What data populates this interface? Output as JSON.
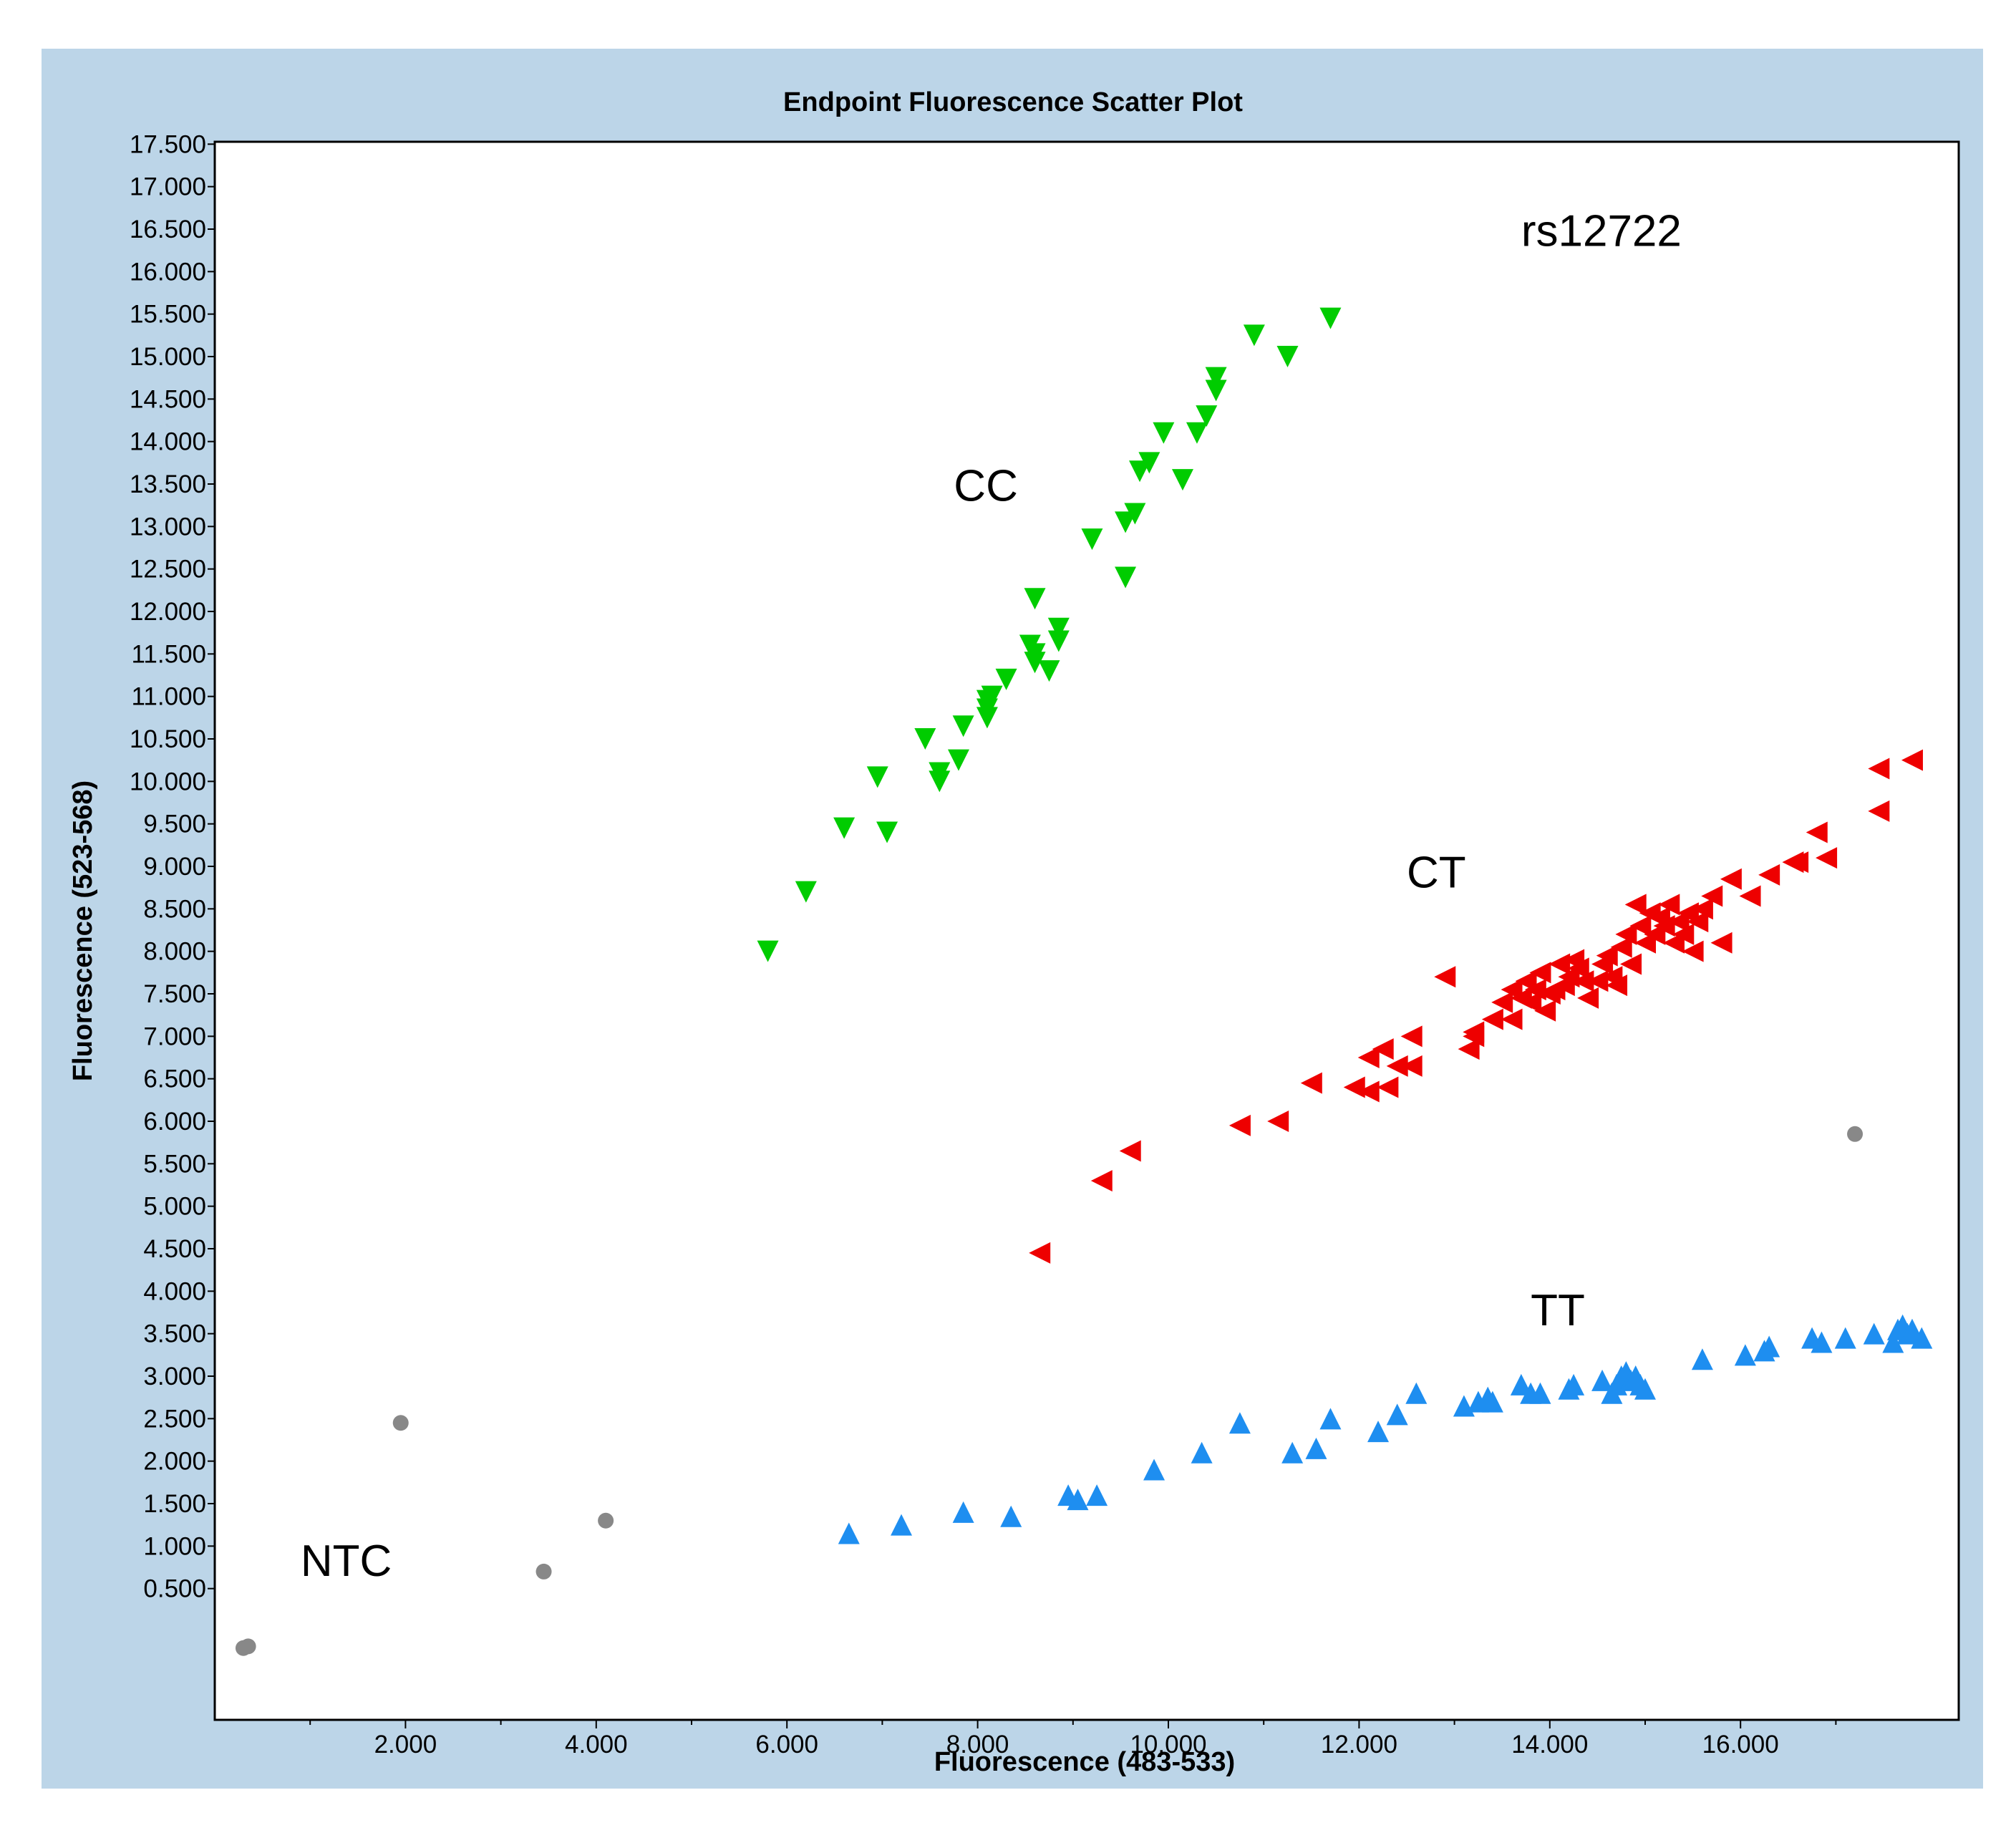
{
  "chart_data": {
    "type": "scatter",
    "title": "Endpoint Fluorescence Scatter Plot",
    "xlabel": "Fluorescence (483-533)",
    "ylabel": "Fluorescence (523-568)",
    "xlim": [
      0,
      18000
    ],
    "ylim": [
      -500,
      18000
    ],
    "xticks": [
      "2.000",
      "4.000",
      "6.000",
      "8.000",
      "10.000",
      "12.000",
      "14.000",
      "16.000"
    ],
    "xtick_values": [
      2000,
      4000,
      6000,
      8000,
      10000,
      12000,
      14000,
      16000
    ],
    "yticks": [
      "0.500",
      "1.000",
      "1.500",
      "2.000",
      "2.500",
      "3.000",
      "3.500",
      "4.000",
      "4.500",
      "5.000",
      "5.500",
      "6.000",
      "6.500",
      "7.000",
      "7.500",
      "8.000",
      "8.500",
      "9.000",
      "9.500",
      "10.000",
      "10.500",
      "11.000",
      "11.500",
      "12.000",
      "12.500",
      "13.000",
      "13.500",
      "14.000",
      "14.500",
      "15.000",
      "15.500",
      "16.000",
      "16.500",
      "17.000",
      "17.500"
    ],
    "ytick_values": [
      500,
      1000,
      1500,
      2000,
      2500,
      3000,
      3500,
      4000,
      4500,
      5000,
      5500,
      6000,
      6500,
      7000,
      7500,
      8000,
      8500,
      9000,
      9500,
      10000,
      10500,
      11000,
      11500,
      12000,
      12500,
      13000,
      13500,
      14000,
      14500,
      15000,
      15500,
      16000,
      16500,
      17000,
      17500
    ],
    "grid": false,
    "annotations": [
      {
        "text": "rs12722",
        "x": 13700,
        "y": 16300
      },
      {
        "text": "CC",
        "x": 7750,
        "y": 13300
      },
      {
        "text": "CT",
        "x": 12500,
        "y": 8750
      },
      {
        "text": "TT",
        "x": 13800,
        "y": 3600
      },
      {
        "text": "NTC",
        "x": 900,
        "y": 650
      }
    ],
    "series": [
      {
        "color": "#00cc00",
        "marker": "triangle-down",
        "points": [
          [
            5800,
            8000
          ],
          [
            6200,
            8700
          ],
          [
            6600,
            9450
          ],
          [
            6950,
            10050
          ],
          [
            7050,
            9400
          ],
          [
            7450,
            10500
          ],
          [
            7600,
            10000
          ],
          [
            7600,
            10100
          ],
          [
            7800,
            10250
          ],
          [
            7850,
            10650
          ],
          [
            8100,
            10750
          ],
          [
            8100,
            10850
          ],
          [
            8150,
            11000
          ],
          [
            8100,
            10950
          ],
          [
            8300,
            11200
          ],
          [
            8550,
            11600
          ],
          [
            8600,
            11500
          ],
          [
            8600,
            12150
          ],
          [
            8600,
            11400
          ],
          [
            8750,
            11300
          ],
          [
            8850,
            11650
          ],
          [
            8850,
            11800
          ],
          [
            9200,
            12850
          ],
          [
            9550,
            13050
          ],
          [
            9550,
            12400
          ],
          [
            9650,
            13150
          ],
          [
            9700,
            13650
          ],
          [
            9800,
            13750
          ],
          [
            9950,
            14100
          ],
          [
            10150,
            13550
          ],
          [
            10300,
            14100
          ],
          [
            10400,
            14300
          ],
          [
            10500,
            14600
          ],
          [
            10500,
            14750
          ],
          [
            10900,
            15250
          ],
          [
            11250,
            15000
          ],
          [
            11700,
            15450
          ]
        ]
      },
      {
        "color": "#ee0000",
        "marker": "triangle-left",
        "points": [
          [
            8650,
            4450
          ],
          [
            9300,
            5300
          ],
          [
            9600,
            5650
          ],
          [
            10750,
            5950
          ],
          [
            11150,
            6000
          ],
          [
            11500,
            6450
          ],
          [
            11950,
            6400
          ],
          [
            12100,
            6350
          ],
          [
            12300,
            6400
          ],
          [
            12100,
            6750
          ],
          [
            12250,
            6850
          ],
          [
            12400,
            6650
          ],
          [
            12550,
            6650
          ],
          [
            12550,
            7000
          ],
          [
            12900,
            7700
          ],
          [
            13150,
            6850
          ],
          [
            13200,
            7000
          ],
          [
            13200,
            7050
          ],
          [
            13400,
            7200
          ],
          [
            13500,
            7400
          ],
          [
            13600,
            7200
          ],
          [
            13600,
            7550
          ],
          [
            13700,
            7450
          ],
          [
            13750,
            7650
          ],
          [
            13800,
            7400
          ],
          [
            13850,
            7550
          ],
          [
            13900,
            7750
          ],
          [
            13950,
            7300
          ],
          [
            14000,
            7500
          ],
          [
            14050,
            7550
          ],
          [
            14100,
            7850
          ],
          [
            14150,
            7600
          ],
          [
            14200,
            7700
          ],
          [
            14250,
            7900
          ],
          [
            14300,
            7800
          ],
          [
            14350,
            7650
          ],
          [
            14400,
            7450
          ],
          [
            14500,
            7650
          ],
          [
            14550,
            7850
          ],
          [
            14600,
            7950
          ],
          [
            14650,
            7700
          ],
          [
            14700,
            7600
          ],
          [
            14750,
            8050
          ],
          [
            14800,
            8200
          ],
          [
            14850,
            7850
          ],
          [
            14900,
            8550
          ],
          [
            14950,
            8300
          ],
          [
            15000,
            8100
          ],
          [
            15050,
            8450
          ],
          [
            15100,
            8200
          ],
          [
            15150,
            8400
          ],
          [
            15200,
            8300
          ],
          [
            15250,
            8550
          ],
          [
            15300,
            8100
          ],
          [
            15350,
            8350
          ],
          [
            15400,
            8200
          ],
          [
            15450,
            8450
          ],
          [
            15500,
            8000
          ],
          [
            15550,
            8350
          ],
          [
            15600,
            8500
          ],
          [
            15700,
            8650
          ],
          [
            15800,
            8100
          ],
          [
            15900,
            8850
          ],
          [
            16100,
            8650
          ],
          [
            16300,
            8900
          ],
          [
            16550,
            9050
          ],
          [
            16600,
            9050
          ],
          [
            16800,
            9400
          ],
          [
            16900,
            9100
          ],
          [
            17450,
            10150
          ],
          [
            17450,
            9650
          ],
          [
            17800,
            10250
          ]
        ]
      },
      {
        "color": "#1e8ef0",
        "marker": "triangle-up",
        "points": [
          [
            6650,
            1150
          ],
          [
            7200,
            1250
          ],
          [
            7850,
            1400
          ],
          [
            8350,
            1350
          ],
          [
            8950,
            1600
          ],
          [
            9050,
            1550
          ],
          [
            9250,
            1600
          ],
          [
            9850,
            1900
          ],
          [
            10350,
            2100
          ],
          [
            10750,
            2450
          ],
          [
            11300,
            2100
          ],
          [
            11550,
            2150
          ],
          [
            11700,
            2500
          ],
          [
            12200,
            2350
          ],
          [
            12400,
            2550
          ],
          [
            12600,
            2800
          ],
          [
            13100,
            2650
          ],
          [
            13250,
            2700
          ],
          [
            13350,
            2750
          ],
          [
            13400,
            2700
          ],
          [
            13700,
            2900
          ],
          [
            13800,
            2800
          ],
          [
            13900,
            2800
          ],
          [
            14200,
            2850
          ],
          [
            14250,
            2900
          ],
          [
            14550,
            2950
          ],
          [
            14650,
            2800
          ],
          [
            14700,
            2900
          ],
          [
            14750,
            3000
          ],
          [
            14800,
            3050
          ],
          [
            14850,
            2950
          ],
          [
            14900,
            3000
          ],
          [
            14950,
            2900
          ],
          [
            15000,
            2850
          ],
          [
            15600,
            3200
          ],
          [
            16050,
            3250
          ],
          [
            16250,
            3300
          ],
          [
            16300,
            3350
          ],
          [
            16750,
            3450
          ],
          [
            16850,
            3400
          ],
          [
            17100,
            3450
          ],
          [
            17400,
            3500
          ],
          [
            17600,
            3400
          ],
          [
            17650,
            3550
          ],
          [
            17700,
            3600
          ],
          [
            17750,
            3500
          ],
          [
            17800,
            3550
          ],
          [
            17900,
            3450
          ]
        ]
      },
      {
        "color": "#888888",
        "marker": "circle",
        "points": [
          [
            300,
            -200
          ],
          [
            350,
            -180
          ],
          [
            1950,
            2450
          ],
          [
            3450,
            700
          ],
          [
            4100,
            1300
          ],
          [
            17200,
            5850
          ]
        ]
      }
    ]
  }
}
